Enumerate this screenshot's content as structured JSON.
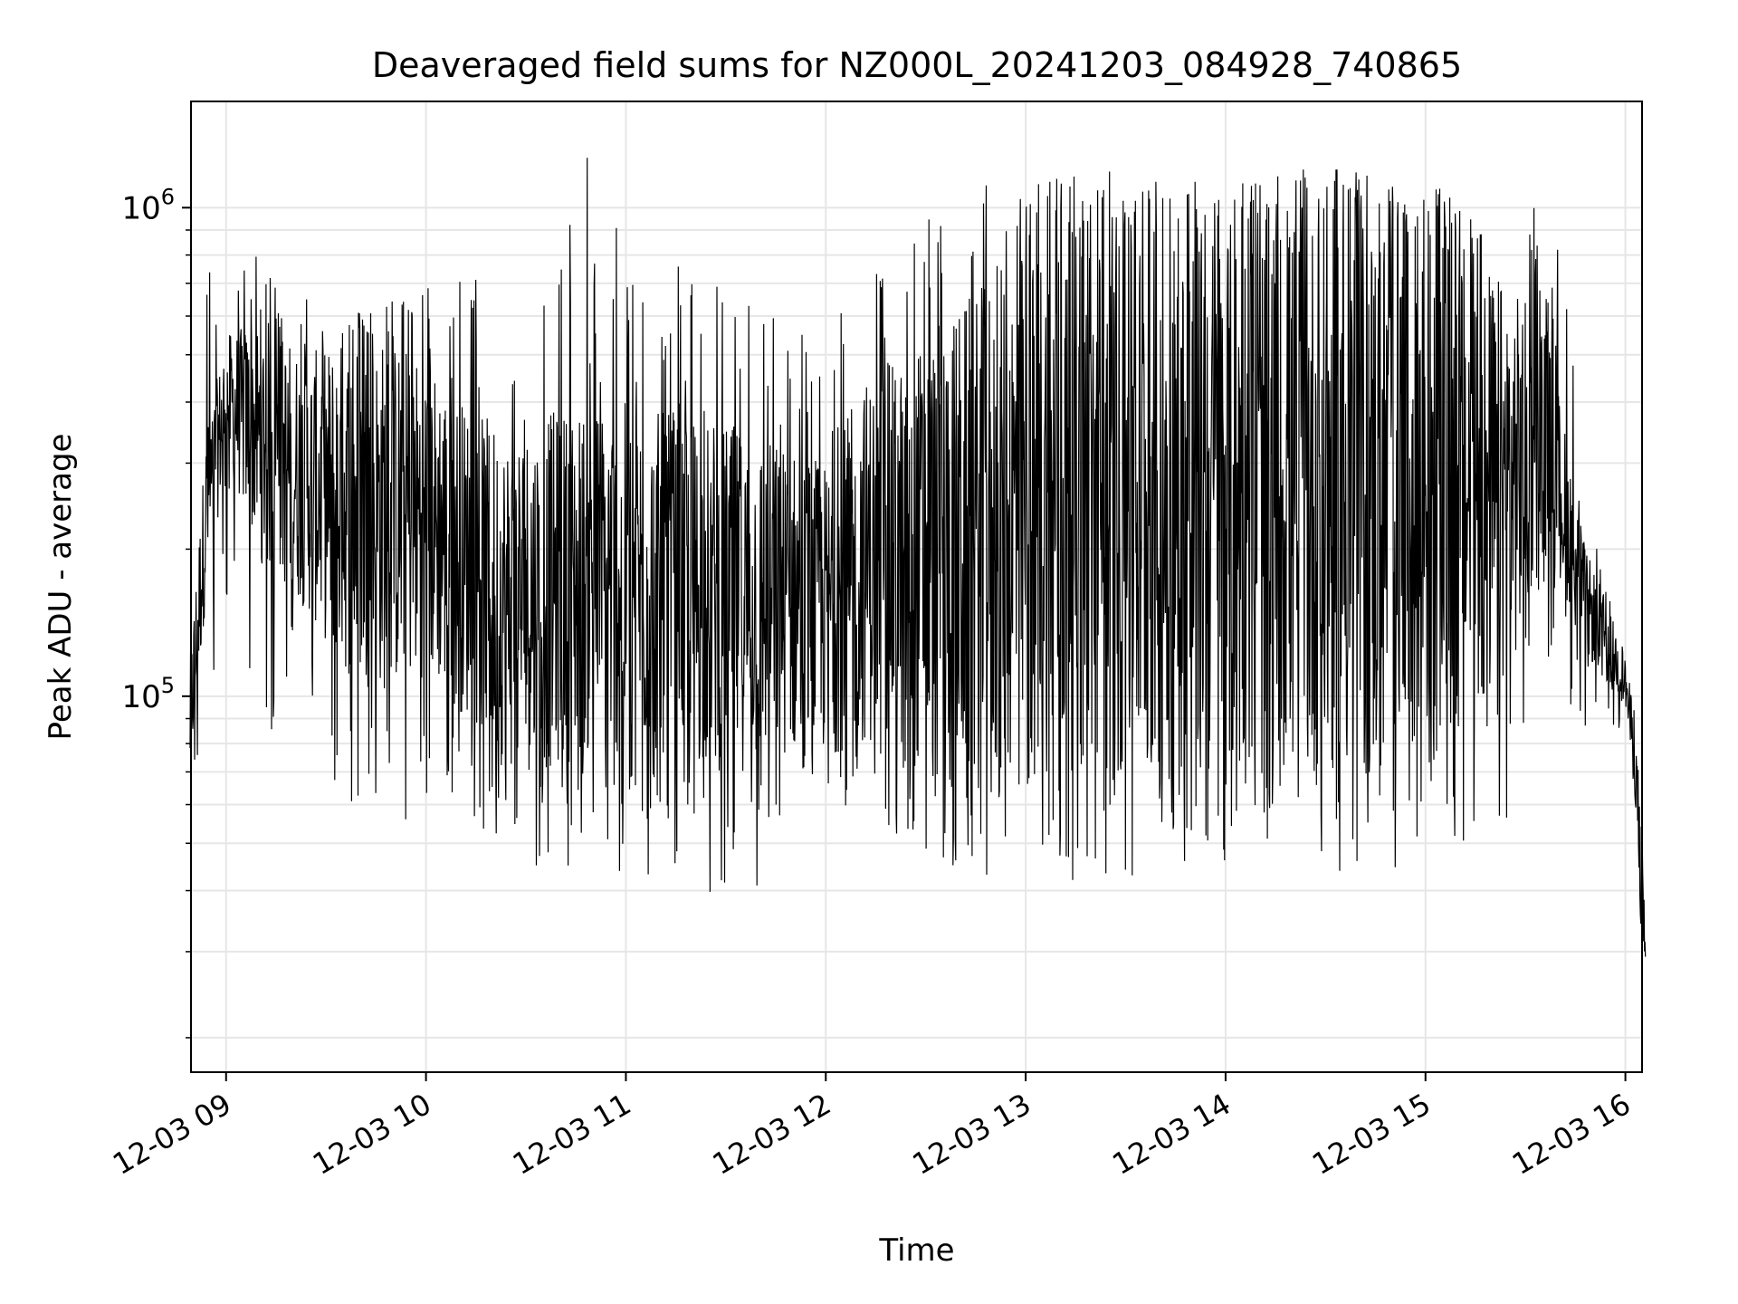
{
  "chart_data": {
    "type": "line",
    "title": "Deaveraged field sums for NZ000L_20241203_084928_740865",
    "xlabel": "Time",
    "ylabel": "Peak ADU - average",
    "x_range": [
      "2024-12-03 08:49:28",
      "2024-12-03 16:05:00"
    ],
    "ylim": [
      17000,
      1650000
    ],
    "yscale": "log",
    "grid": true,
    "line_color": "#000000",
    "x_ticks": [
      "12-03 09",
      "12-03 10",
      "12-03 11",
      "12-03 12",
      "12-03 13",
      "12-03 14",
      "12-03 15",
      "12-03 16"
    ],
    "y_tick_labels": [
      {
        "base": "10",
        "exp": "5",
        "value": 100000
      },
      {
        "base": "10",
        "exp": "6",
        "value": 1000000
      }
    ],
    "series_envelope": {
      "time_hours": [
        8.82,
        8.9,
        9.0,
        9.2,
        9.4,
        9.6,
        9.8,
        10.0,
        10.2,
        10.4,
        10.6,
        10.8,
        11.0,
        11.2,
        11.4,
        11.6,
        11.8,
        12.0,
        12.2,
        12.4,
        12.6,
        12.8,
        13.0,
        13.2,
        13.4,
        13.6,
        13.8,
        14.0,
        14.2,
        14.4,
        14.6,
        14.8,
        15.0,
        15.2,
        15.4,
        15.6,
        15.7,
        15.8,
        15.9,
        16.0,
        16.05,
        16.1
      ],
      "typical_low": [
        65000,
        160000,
        300000,
        180000,
        150000,
        110000,
        100000,
        110000,
        90000,
        70000,
        70000,
        75000,
        75000,
        75000,
        70000,
        70000,
        75000,
        75000,
        80000,
        75000,
        60000,
        65000,
        70000,
        70000,
        65000,
        65000,
        65000,
        65000,
        65000,
        65000,
        65000,
        65000,
        75000,
        80000,
        100000,
        200000,
        160000,
        120000,
        110000,
        95000,
        60000,
        22000
      ],
      "typical_high": [
        120000,
        350000,
        550000,
        600000,
        500000,
        550000,
        550000,
        500000,
        400000,
        350000,
        380000,
        400000,
        400000,
        380000,
        380000,
        350000,
        330000,
        300000,
        450000,
        500000,
        600000,
        700000,
        850000,
        900000,
        900000,
        950000,
        950000,
        950000,
        950000,
        1000000,
        1000000,
        1000000,
        950000,
        850000,
        700000,
        600000,
        350000,
        200000,
        160000,
        120000,
        90000,
        40000
      ],
      "spike_max": [
        100000,
        1100000,
        950000,
        750000,
        700000,
        600000,
        650000,
        700000,
        750000,
        700000,
        750000,
        1300000,
        950000,
        750000,
        850000,
        700000,
        600000,
        750000,
        750000,
        800000,
        1200000,
        1350000,
        1150000,
        1200000,
        1200000,
        1150000,
        1150000,
        1150000,
        1150000,
        1200000,
        1200000,
        1150000,
        1150000,
        1000000,
        1050000,
        1050000,
        750000,
        250000,
        170000,
        120000,
        90000,
        40000
      ],
      "spike_min": [
        65000,
        70000,
        150000,
        85000,
        55000,
        30000,
        50000,
        60000,
        60000,
        45000,
        45000,
        45000,
        40000,
        40000,
        38000,
        40000,
        36000,
        45000,
        55000,
        48000,
        45000,
        42000,
        50000,
        42000,
        42000,
        40000,
        45000,
        45000,
        42000,
        42000,
        42000,
        40000,
        45000,
        48000,
        55000,
        120000,
        100000,
        85000,
        85000,
        85000,
        50000,
        21000
      ]
    }
  }
}
